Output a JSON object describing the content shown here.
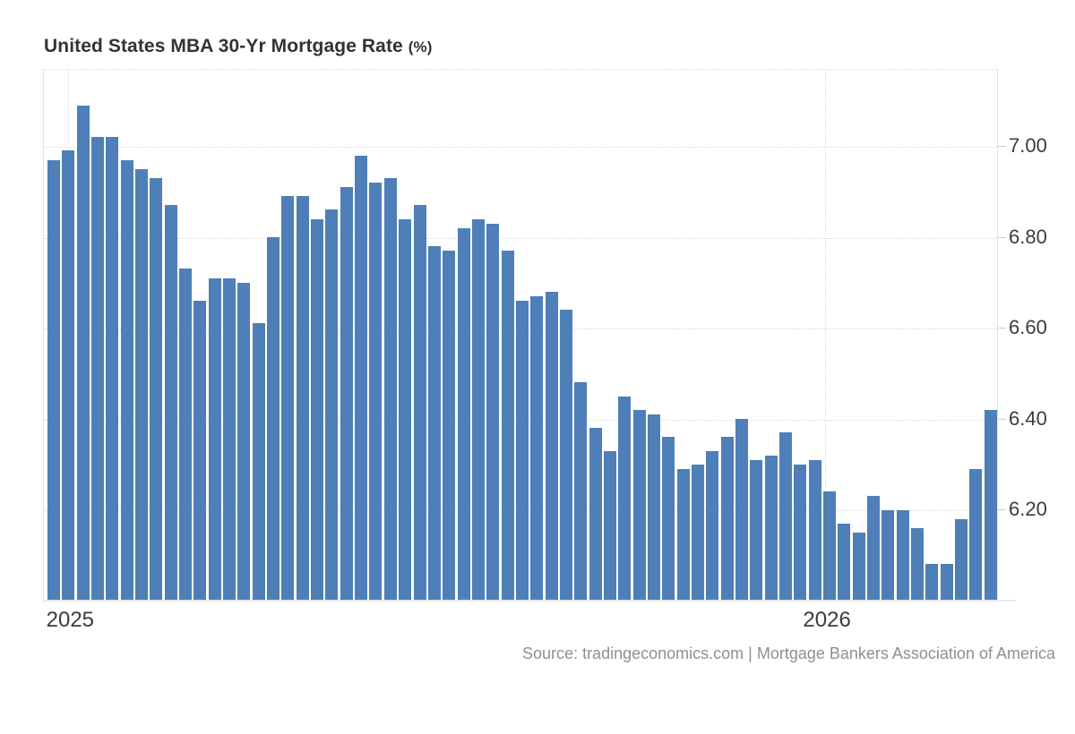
{
  "title": {
    "main": "United States MBA 30-Yr Mortgage Rate",
    "suffix": "(%)"
  },
  "source_text": "Source: tradingeconomics.com | Mortgage Bankers Association of America",
  "colors": {
    "bar": "#4e7fb8",
    "grid": "#d9d9d9",
    "axis": "#e2e2e2",
    "tick": "#cccccc",
    "tick_label": "#3c3c3c",
    "title": "#333333",
    "source": "#8f8f8f",
    "background": "#ffffff"
  },
  "chart_data": {
    "type": "bar",
    "title": "United States MBA 30-Yr Mortgage Rate (%)",
    "ylabel": "",
    "xlabel": "",
    "values": [
      6.97,
      6.99,
      7.09,
      7.02,
      7.02,
      6.97,
      6.95,
      6.93,
      6.87,
      6.73,
      6.66,
      6.71,
      6.71,
      6.7,
      6.61,
      6.8,
      6.89,
      6.89,
      6.84,
      6.86,
      6.91,
      6.98,
      6.92,
      6.93,
      6.84,
      6.87,
      6.78,
      6.77,
      6.82,
      6.84,
      6.83,
      6.77,
      6.66,
      6.67,
      6.68,
      6.64,
      6.48,
      6.38,
      6.33,
      6.45,
      6.42,
      6.41,
      6.36,
      6.29,
      6.3,
      6.33,
      6.36,
      6.4,
      6.31,
      6.32,
      6.37,
      6.3,
      6.31,
      6.24,
      6.17,
      6.15,
      6.23,
      6.2,
      6.2,
      6.16,
      6.08,
      6.08,
      6.18,
      6.29,
      6.42
    ],
    "y_axis": {
      "side": "right",
      "min": 6.0,
      "max": 7.17,
      "ticks": [
        7.0,
        6.8,
        6.6,
        6.4,
        6.2
      ],
      "tick_labels": [
        "7.00",
        "6.80",
        "6.60",
        "6.40",
        "6.20"
      ],
      "grid": "dotted"
    },
    "x_axis": {
      "labels": [
        {
          "text": "2025",
          "bar_index": 1.0
        },
        {
          "text": "2026",
          "bar_index": 52.7
        }
      ],
      "grid": "dotted"
    },
    "legend": "none"
  }
}
